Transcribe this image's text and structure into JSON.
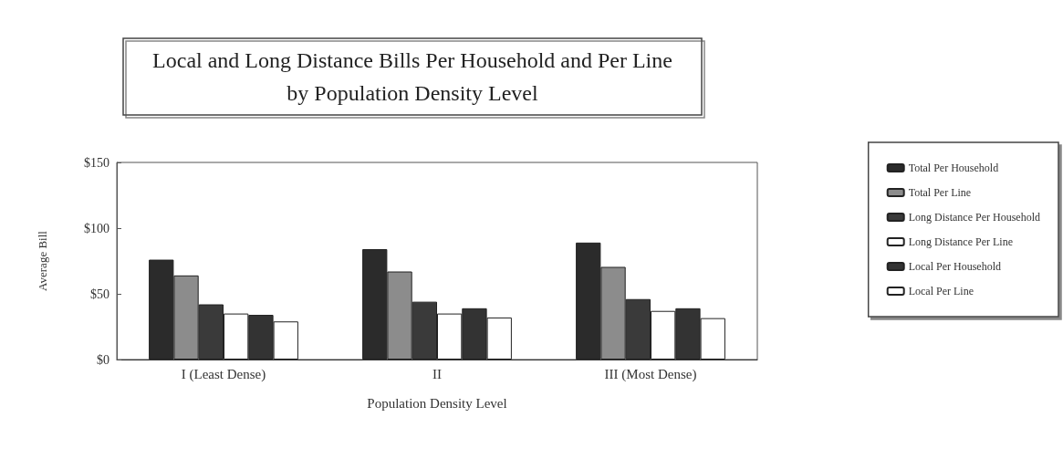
{
  "chart_data": {
    "type": "bar",
    "title": "Local and Long Distance Bills Per Household and Per Line\nby Population Density Level",
    "xlabel": "Population Density Level",
    "ylabel": "Average Bill",
    "categories": [
      "I (Least Dense)",
      "II",
      "III (Most Dense)"
    ],
    "series": [
      {
        "name": "Total Per Household",
        "color": "#2b2b2b",
        "values": [
          76,
          84,
          89
        ]
      },
      {
        "name": "Total Per Line",
        "color": "#8c8c8c",
        "values": [
          64,
          67,
          70.5
        ]
      },
      {
        "name": "Long Distance Per Household",
        "color": "#3a3a3a",
        "values": [
          42,
          44,
          46
        ]
      },
      {
        "name": "Long Distance Per Line",
        "color": "#ffffff",
        "values": [
          35,
          35,
          37
        ]
      },
      {
        "name": "Local Per Household",
        "color": "#333333",
        "values": [
          34,
          39,
          39
        ]
      },
      {
        "name": "Local Per Line",
        "color": "#ffffff",
        "values": [
          29,
          32,
          31.5
        ]
      }
    ],
    "ylim": [
      0,
      150
    ],
    "yticks": [
      {
        "value": 0,
        "label": "$0"
      },
      {
        "value": 50,
        "label": "$50"
      },
      {
        "value": 100,
        "label": "$100"
      },
      {
        "value": 150,
        "label": "$150"
      }
    ],
    "grid": false,
    "legend": "right"
  }
}
